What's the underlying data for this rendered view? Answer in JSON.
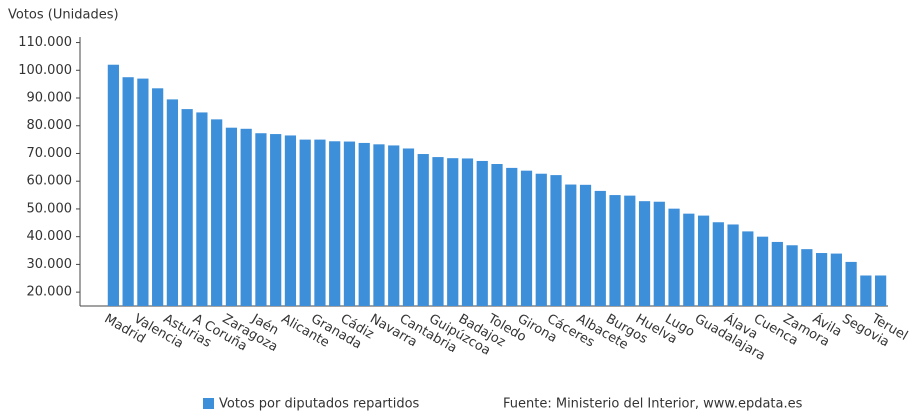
{
  "chart_data": {
    "type": "bar",
    "y_axis_title": "Votos (Unidades)",
    "categories": [
      "Madrid",
      null,
      "Valencia",
      null,
      "Asturias",
      null,
      "A Coruña",
      null,
      "Zaragoza",
      null,
      "Jaén",
      null,
      "Alicante",
      null,
      "Granada",
      null,
      "Cádiz",
      null,
      "Navarra",
      null,
      "Cantabria",
      null,
      "Guipúzcoa",
      null,
      "Badajoz",
      null,
      "Toledo",
      null,
      "Girona",
      null,
      "Cáceres",
      null,
      "Albacete",
      null,
      "Burgos",
      null,
      "Huelva",
      null,
      "Lugo",
      null,
      "Guadalajara",
      null,
      "Álava",
      null,
      "Cuenca",
      null,
      "Zamora",
      null,
      "Ávila",
      null,
      "Segovia",
      null,
      "Teruel"
    ],
    "series": [
      {
        "name": "Votos por diputados repartidos",
        "color": "#3d8fd9",
        "values": [
          102000,
          97500,
          97000,
          93500,
          89500,
          86000,
          84800,
          82300,
          79300,
          78900,
          77300,
          77000,
          76500,
          75000,
          75000,
          74400,
          74300,
          73800,
          73300,
          72900,
          71800,
          69800,
          68700,
          68300,
          68200,
          67300,
          66200,
          64800,
          63800,
          62700,
          62200,
          58800,
          58700,
          56500,
          55000,
          54800,
          52800,
          52600,
          50100,
          48300,
          47600,
          45200,
          44400,
          41900,
          40000,
          38100,
          36900,
          35500,
          34100,
          33900,
          30900,
          26000,
          26000
        ]
      }
    ],
    "ylim": [
      15000,
      112000
    ],
    "yticks": [
      {
        "value": 20000,
        "label": "20.000"
      },
      {
        "value": 30000,
        "label": "30.000"
      },
      {
        "value": 40000,
        "label": "40.000"
      },
      {
        "value": 50000,
        "label": "50.000"
      },
      {
        "value": 60000,
        "label": "60.000"
      },
      {
        "value": 70000,
        "label": "70.000"
      },
      {
        "value": 80000,
        "label": "80.000"
      },
      {
        "value": 90000,
        "label": "90.000"
      },
      {
        "value": 100000,
        "label": "100.000"
      },
      {
        "value": 110000,
        "label": "110.000"
      }
    ],
    "grid": false,
    "legend": "bottom",
    "source": "Fuente: Ministerio del Interior, www.epdata.es"
  }
}
